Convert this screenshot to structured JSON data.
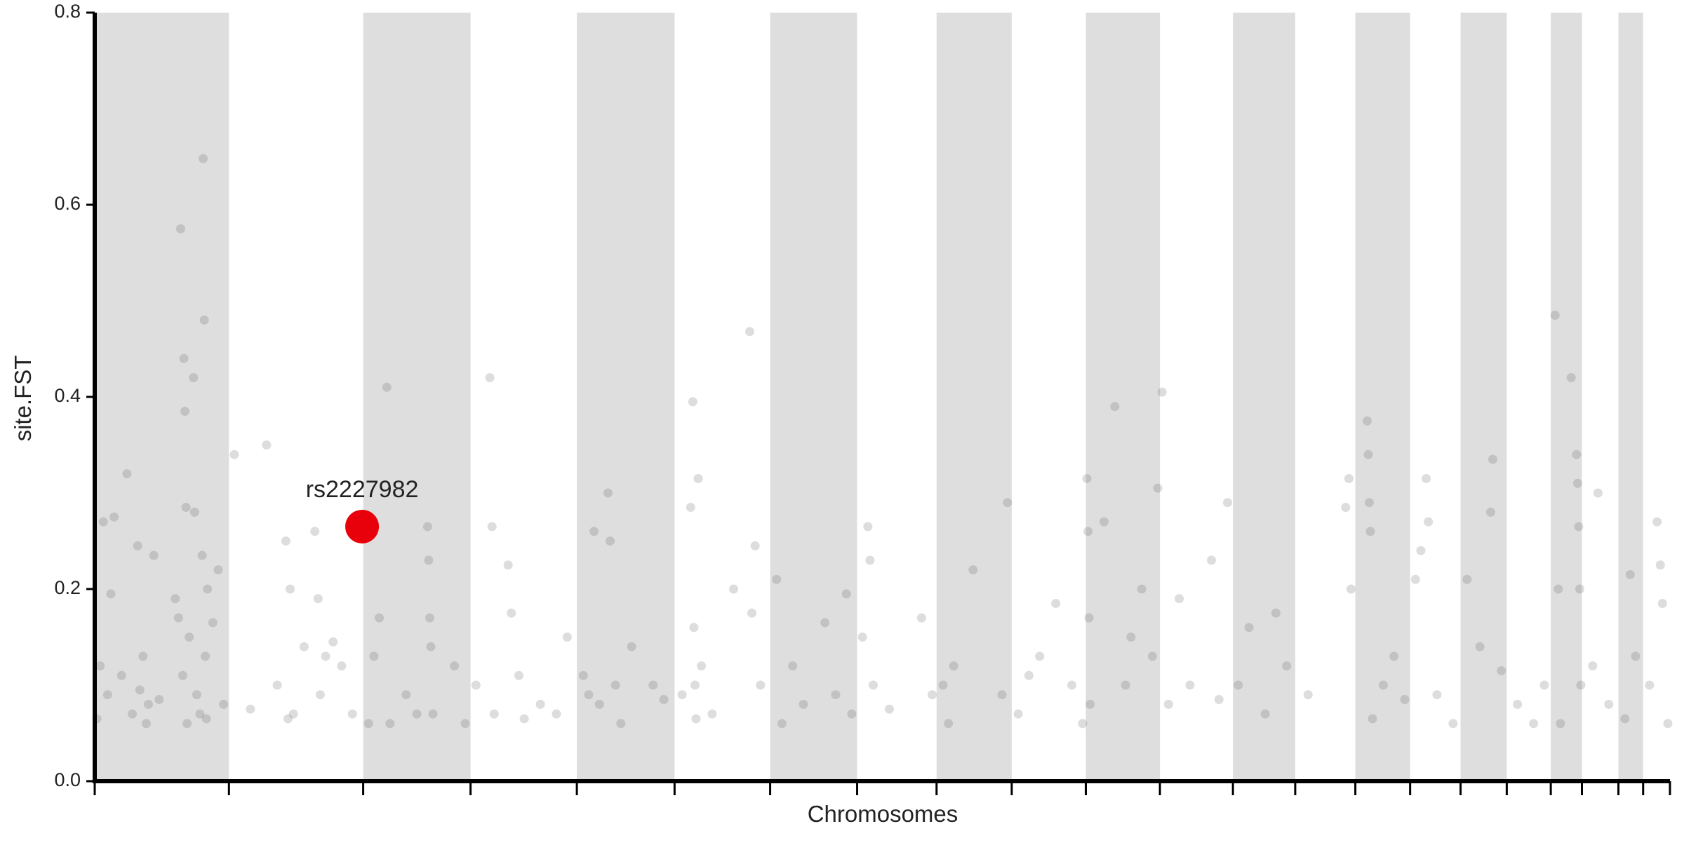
{
  "chart_data": {
    "type": "scatter",
    "xlabel": "Chromosomes",
    "ylabel": "site.FST",
    "xlim": [
      0,
      1467
    ],
    "ylim": [
      0,
      0.8
    ],
    "yticks": [
      {
        "value": 0,
        "label": "0.0"
      },
      0.2,
      0.4,
      0.6,
      0.8
    ],
    "chromosome_bounds": [
      0,
      125,
      250,
      350,
      449,
      540,
      629,
      710,
      784,
      854,
      923,
      992,
      1060,
      1118,
      1174,
      1225,
      1272,
      1315,
      1356,
      1385,
      1419,
      1442,
      1467
    ],
    "band_color": "#dedede",
    "color": "#555555",
    "x": [
      2,
      5,
      8,
      12,
      15,
      18,
      25,
      30,
      35,
      40,
      42,
      45,
      48,
      50,
      55,
      60,
      75,
      78,
      80,
      82,
      83,
      84,
      85,
      86,
      88,
      92,
      93,
      95,
      98,
      100,
      101,
      102,
      103,
      104,
      105,
      110,
      115,
      120,
      130,
      145,
      160,
      170,
      178,
      180,
      182,
      185,
      195,
      205,
      208,
      210,
      215,
      222,
      230,
      240,
      255,
      260,
      265,
      272,
      275,
      290,
      300,
      310,
      311,
      312,
      313,
      315,
      335,
      345,
      355,
      368,
      370,
      372,
      385,
      388,
      395,
      400,
      415,
      430,
      440,
      455,
      460,
      465,
      470,
      478,
      480,
      485,
      490,
      500,
      520,
      530,
      547,
      555,
      557,
      558,
      559,
      560,
      562,
      565,
      575,
      595,
      610,
      612,
      615,
      620,
      635,
      640,
      650,
      660,
      680,
      690,
      700,
      705,
      715,
      720,
      722,
      725,
      740,
      770,
      780,
      790,
      795,
      800,
      818,
      845,
      850,
      860,
      870,
      880,
      895,
      910,
      920,
      924,
      925,
      926,
      927,
      940,
      950,
      960,
      965,
      975,
      985,
      990,
      994,
      1000,
      1010,
      1020,
      1040,
      1047,
      1055,
      1065,
      1075,
      1090,
      1100,
      1110,
      1130,
      1165,
      1168,
      1170,
      1185,
      1186,
      1187,
      1188,
      1190,
      1200,
      1210,
      1220,
      1230,
      1235,
      1240,
      1242,
      1250,
      1265,
      1278,
      1290,
      1300,
      1302,
      1310,
      1325,
      1340,
      1350,
      1360,
      1363,
      1365,
      1375,
      1380,
      1381,
      1382,
      1383,
      1384,
      1395,
      1400,
      1410,
      1425,
      1430,
      1435,
      1448,
      1455,
      1458,
      1460,
      1465
    ],
    "values": [
      0.065,
      0.12,
      0.27,
      0.09,
      0.195,
      0.275,
      0.11,
      0.32,
      0.07,
      0.245,
      0.095,
      0.13,
      0.06,
      0.08,
      0.235,
      0.085,
      0.19,
      0.17,
      0.575,
      0.11,
      0.44,
      0.385,
      0.285,
      0.06,
      0.15,
      0.42,
      0.28,
      0.09,
      0.07,
      0.235,
      0.648,
      0.48,
      0.13,
      0.065,
      0.2,
      0.165,
      0.22,
      0.08,
      0.34,
      0.075,
      0.35,
      0.1,
      0.25,
      0.065,
      0.2,
      0.07,
      0.14,
      0.26,
      0.19,
      0.09,
      0.13,
      0.145,
      0.12,
      0.07,
      0.06,
      0.13,
      0.17,
      0.41,
      0.06,
      0.09,
      0.07,
      0.265,
      0.23,
      0.17,
      0.14,
      0.07,
      0.12,
      0.06,
      0.1,
      0.42,
      0.265,
      0.07,
      0.225,
      0.175,
      0.11,
      0.065,
      0.08,
      0.07,
      0.15,
      0.11,
      0.09,
      0.26,
      0.08,
      0.3,
      0.25,
      0.1,
      0.06,
      0.14,
      0.1,
      0.085,
      0.09,
      0.285,
      0.395,
      0.16,
      0.1,
      0.065,
      0.315,
      0.12,
      0.07,
      0.2,
      0.468,
      0.175,
      0.245,
      0.1,
      0.21,
      0.06,
      0.12,
      0.08,
      0.165,
      0.09,
      0.195,
      0.07,
      0.15,
      0.265,
      0.23,
      0.1,
      0.075,
      0.17,
      0.09,
      0.1,
      0.06,
      0.12,
      0.22,
      0.09,
      0.29,
      0.07,
      0.11,
      0.13,
      0.185,
      0.1,
      0.06,
      0.315,
      0.26,
      0.17,
      0.08,
      0.27,
      0.39,
      0.1,
      0.15,
      0.2,
      0.13,
      0.305,
      0.405,
      0.08,
      0.19,
      0.1,
      0.23,
      0.085,
      0.29,
      0.1,
      0.16,
      0.07,
      0.175,
      0.12,
      0.09,
      0.285,
      0.315,
      0.2,
      0.375,
      0.34,
      0.29,
      0.26,
      0.065,
      0.1,
      0.13,
      0.085,
      0.21,
      0.24,
      0.315,
      0.27,
      0.09,
      0.06,
      0.21,
      0.14,
      0.28,
      0.335,
      0.115,
      0.08,
      0.06,
      0.1,
      0.485,
      0.2,
      0.06,
      0.42,
      0.34,
      0.31,
      0.265,
      0.2,
      0.1,
      0.12,
      0.3,
      0.08,
      0.065,
      0.215,
      0.13,
      0.1,
      0.27,
      0.225,
      0.185,
      0.06
    ],
    "highlight": {
      "label": "rs2227982",
      "x": 249,
      "value": 0.265,
      "color": "#e8000b"
    }
  }
}
